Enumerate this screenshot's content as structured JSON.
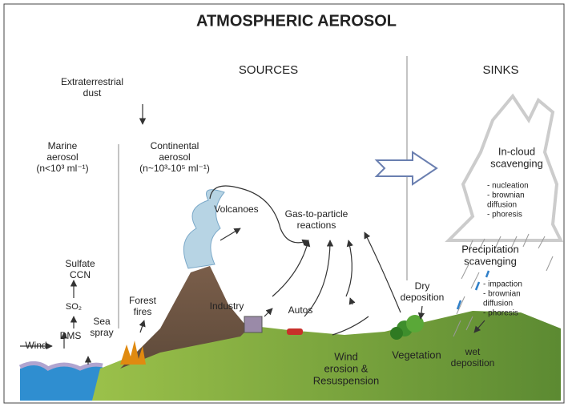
{
  "title": "ATMOSPHERIC AEROSOL",
  "sections": {
    "sources": "SOURCES",
    "sinks": "SINKS"
  },
  "labels": [
    {
      "lines": [
        "Extraterrestrial",
        "dust"
      ]
    },
    {
      "lines": [
        "Marine",
        "aerosol",
        "(n<10³ ml⁻¹)"
      ]
    },
    {
      "lines": [
        "Continental",
        "aerosol",
        "(n~10³-10⁵ ml⁻¹)"
      ]
    },
    {
      "lines": [
        "In-cloud",
        "scavenging"
      ]
    },
    {
      "lines": [
        "- nucleation",
        "- brownian",
        "diffusion",
        "- phoresis"
      ]
    },
    {
      "lines": [
        "Volcanoes"
      ]
    },
    {
      "lines": [
        "Gas-to-particle",
        "reactions"
      ]
    },
    {
      "lines": [
        "Sulfate",
        "CCN"
      ]
    },
    {
      "lines": [
        "SO₂"
      ]
    },
    {
      "lines": [
        "DMS"
      ]
    },
    {
      "lines": [
        "Wind"
      ]
    },
    {
      "lines": [
        "Sea",
        "spray"
      ]
    },
    {
      "lines": [
        "Forest",
        "fires"
      ]
    },
    {
      "lines": [
        "Industry"
      ]
    },
    {
      "lines": [
        "Autos"
      ]
    },
    {
      "lines": [
        "Wind",
        "erosion &",
        "Resuspension"
      ]
    },
    {
      "lines": [
        "Vegetation"
      ]
    },
    {
      "lines": [
        "Dry",
        "deposition"
      ]
    },
    {
      "lines": [
        "Precipitation",
        "scavenging"
      ]
    },
    {
      "lines": [
        "- impaction",
        "- brownian",
        "diffusion",
        "- phoresis"
      ]
    },
    {
      "lines": [
        "wet",
        "deposition"
      ]
    }
  ]
}
